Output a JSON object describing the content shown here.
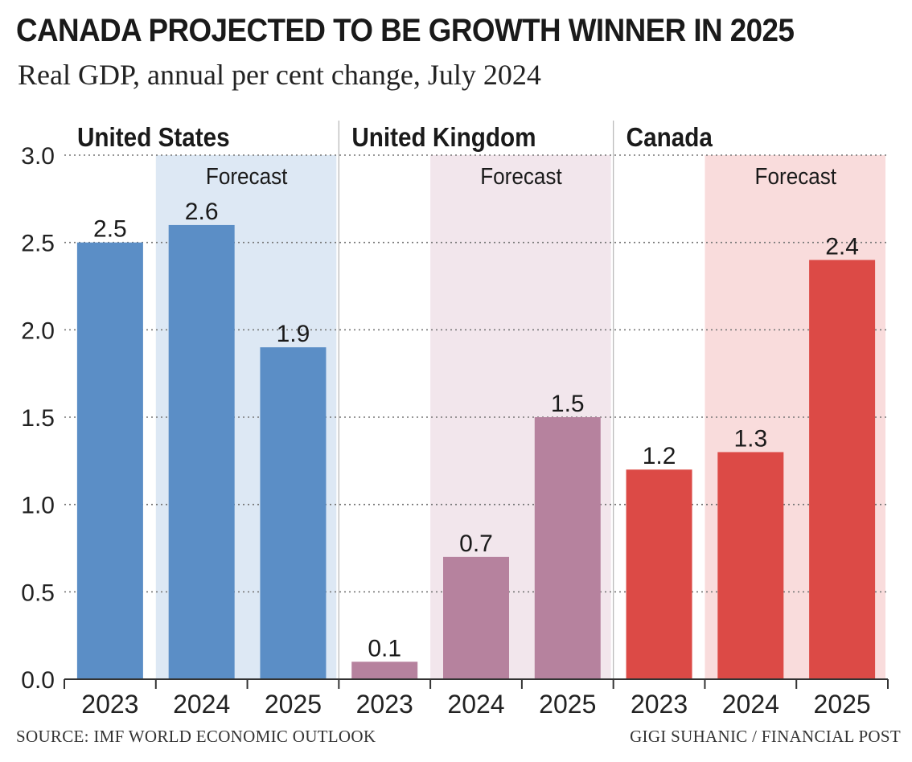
{
  "header": {
    "title": "CANADA PROJECTED TO BE GROWTH WINNER IN 2025",
    "subtitle": "Real GDP, annual per cent change, July 2024"
  },
  "footer": {
    "source": "SOURCE: IMF WORLD ECONOMIC OUTLOOK",
    "credit": "GIGI SUHANIC / FINANCIAL POST"
  },
  "chart_data": {
    "type": "bar",
    "ylim": [
      0,
      3.0
    ],
    "yticks": [
      "0.0",
      "0.5",
      "1.0",
      "1.5",
      "2.0",
      "2.5",
      "3.0"
    ],
    "grid": true,
    "forecast_label": "Forecast",
    "panels": [
      {
        "name": "United States",
        "color": "#5b8ec6",
        "shade_color": "#dde8f4",
        "categories": [
          "2023",
          "2024",
          "2025"
        ],
        "values": [
          2.5,
          2.6,
          1.9
        ],
        "labels": [
          "2.5",
          "2.6",
          "1.9"
        ]
      },
      {
        "name": "United Kingdom",
        "color": "#b6829e",
        "shade_color": "#f2e6ec",
        "categories": [
          "2023",
          "2024",
          "2025"
        ],
        "values": [
          0.1,
          0.7,
          1.5
        ],
        "labels": [
          "0.1",
          "0.7",
          "1.5"
        ]
      },
      {
        "name": "Canada",
        "color": "#dc4a46",
        "shade_color": "#f9dcdc",
        "categories": [
          "2023",
          "2024",
          "2025"
        ],
        "values": [
          1.2,
          1.3,
          2.4
        ],
        "labels": [
          "1.2",
          "1.3",
          "2.4"
        ]
      }
    ]
  }
}
